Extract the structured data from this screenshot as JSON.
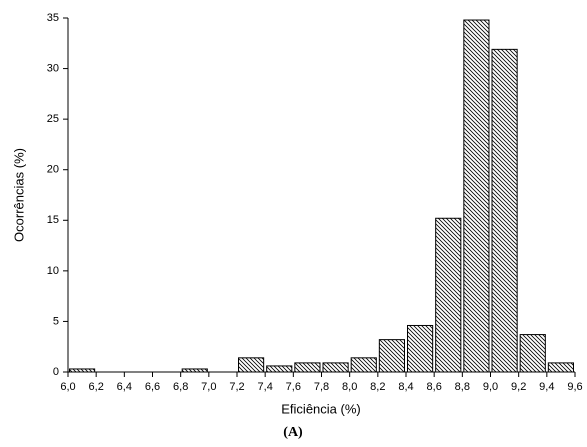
{
  "chart_data": {
    "type": "histogram",
    "xlabel": "Eficiência (%)",
    "ylabel": "Ocorrências (%)",
    "caption": "(A)",
    "bins": [
      6,
      6.2,
      6.4,
      6.6,
      6.8,
      7,
      7.2,
      7.4,
      7.6,
      7.8,
      8,
      8.2,
      8.4,
      8.6,
      8.8,
      9,
      9.2,
      9.4,
      9.6
    ],
    "counts": [
      0.3,
      0,
      0,
      0,
      0.3,
      0,
      1.4,
      0.6,
      0.9,
      0.9,
      1.4,
      3.2,
      4.6,
      15.2,
      34.8,
      31.9,
      3.7,
      0.9
    ],
    "color": "#000000",
    "fill_pattern": "hatch",
    "xlim": [
      6,
      9.6
    ],
    "xticks": [
      {
        "value": 6,
        "label": "6,0"
      },
      {
        "value": 6.2,
        "label": "6,2"
      },
      {
        "value": 6.4,
        "label": "6,4"
      },
      {
        "value": 6.6,
        "label": "6,6"
      },
      {
        "value": 6.8,
        "label": "6,8"
      },
      {
        "value": 7,
        "label": "7,0"
      },
      {
        "value": 7.2,
        "label": "7,2"
      },
      {
        "value": 7.4,
        "label": "7,4"
      },
      {
        "value": 7.6,
        "label": "7,6"
      },
      {
        "value": 7.8,
        "label": "7,8"
      },
      {
        "value": 8,
        "label": "8,0"
      },
      {
        "value": 8.2,
        "label": "8,2"
      },
      {
        "value": 8.4,
        "label": "8,4"
      },
      {
        "value": 8.6,
        "label": "8,6"
      },
      {
        "value": 8.8,
        "label": "8,8"
      },
      {
        "value": 9,
        "label": "9,0"
      },
      {
        "value": 9.2,
        "label": "9,2"
      },
      {
        "value": 9.4,
        "label": "9,4"
      },
      {
        "value": 9.6,
        "label": "9,6"
      }
    ],
    "ylim": [
      0,
      35
    ],
    "yticks": [
      0,
      5,
      10,
      15,
      20,
      25,
      30,
      35
    ],
    "grid": false
  }
}
